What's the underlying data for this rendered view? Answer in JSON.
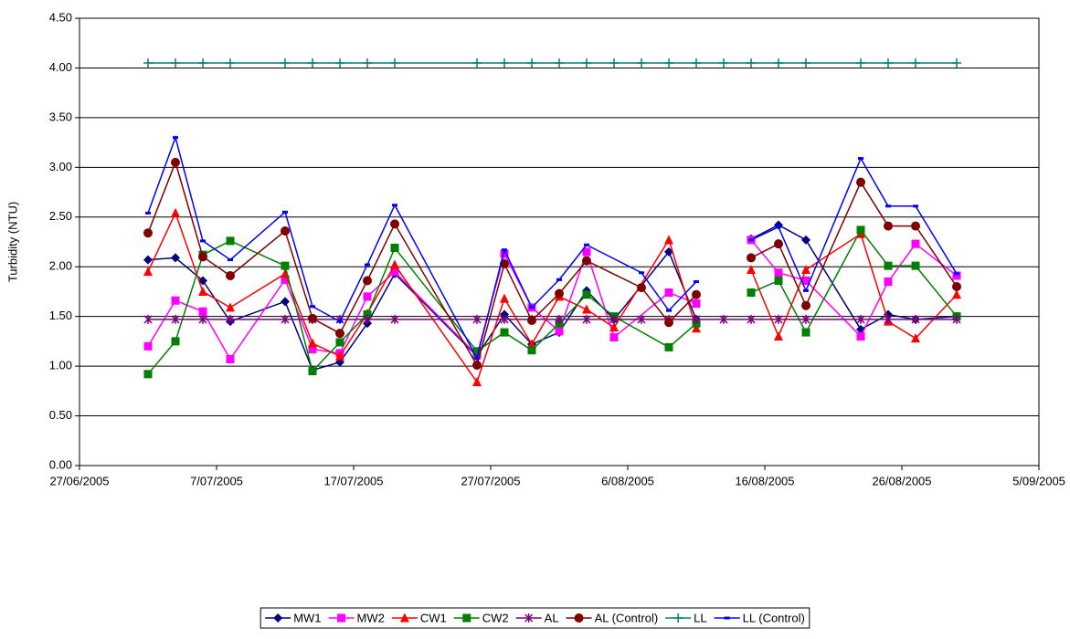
{
  "chart_data": {
    "type": "line",
    "y_label": "Turbidity (NTU)",
    "ylim": [
      0,
      4.5
    ],
    "yticks": [
      {
        "value": 0,
        "label": "0.00"
      },
      {
        "value": 0.5,
        "label": "0.50"
      },
      {
        "value": 1,
        "label": "1.00"
      },
      {
        "value": 1.5,
        "label": "1.50"
      },
      {
        "value": 2,
        "label": "2.00"
      },
      {
        "value": 2.5,
        "label": "2.50"
      },
      {
        "value": 3,
        "label": "3.00"
      },
      {
        "value": 3.5,
        "label": "3.50"
      },
      {
        "value": 4,
        "label": "4.00"
      },
      {
        "value": 4.5,
        "label": "4.50"
      }
    ],
    "xlim": [
      "2005-06-27",
      "2005-09-05"
    ],
    "xticks": [
      {
        "value": "2005-06-27",
        "label": "27/06/2005"
      },
      {
        "value": "2005-07-07",
        "label": "7/07/2005"
      },
      {
        "value": "2005-07-17",
        "label": "17/07/2005"
      },
      {
        "value": "2005-07-27",
        "label": "27/07/2005"
      },
      {
        "value": "2005-08-06",
        "label": "6/08/2005"
      },
      {
        "value": "2005-08-16",
        "label": "16/08/2005"
      },
      {
        "value": "2005-08-26",
        "label": "26/08/2005"
      },
      {
        "value": "2005-09-05",
        "label": "5/09/2005"
      }
    ],
    "grid": true,
    "legend": "bottom",
    "series": [
      {
        "name": "MW1",
        "color": "#000080",
        "marker": "diamond",
        "x": [
          "2005-07-02",
          "2005-07-04",
          "2005-07-06",
          "2005-07-08",
          "2005-07-12",
          "2005-07-14",
          "2005-07-16",
          "2005-07-18",
          "2005-07-20",
          "2005-07-26",
          "2005-07-28",
          "2005-07-30",
          "2005-08-01",
          "2005-08-03",
          "2005-08-05",
          "2005-08-09",
          "2005-08-11",
          "2005-08-13",
          "2005-08-15",
          "2005-08-17",
          "2005-08-19",
          "2005-08-23",
          "2005-08-25",
          "2005-08-27",
          "2005-08-30"
        ],
        "values": [
          2.07,
          2.09,
          1.86,
          1.45,
          1.65,
          0.96,
          1.04,
          1.43,
          1.93,
          1.1,
          1.52,
          1.22,
          1.34,
          1.76,
          1.47,
          2.15,
          1.47,
          null,
          2.28,
          2.42,
          2.27,
          1.37,
          1.52,
          1.47,
          1.5
        ]
      },
      {
        "name": "MW2",
        "color": "#FF00FF",
        "marker": "square",
        "x": [
          "2005-07-02",
          "2005-07-04",
          "2005-07-06",
          "2005-07-08",
          "2005-07-12",
          "2005-07-14",
          "2005-07-16",
          "2005-07-18",
          "2005-07-20",
          "2005-07-26",
          "2005-07-28",
          "2005-07-30",
          "2005-08-01",
          "2005-08-03",
          "2005-08-05",
          "2005-08-09",
          "2005-08-11",
          "2005-08-13",
          "2005-08-15",
          "2005-08-17",
          "2005-08-19",
          "2005-08-23",
          "2005-08-25",
          "2005-08-27",
          "2005-08-30"
        ],
        "values": [
          1.2,
          1.66,
          1.55,
          1.07,
          1.87,
          1.17,
          1.13,
          1.7,
          1.95,
          1.11,
          2.13,
          1.59,
          1.35,
          2.15,
          1.29,
          1.74,
          1.63,
          null,
          2.27,
          1.94,
          1.86,
          1.3,
          1.85,
          2.23,
          1.91
        ]
      },
      {
        "name": "CW1",
        "color": "#FF0000",
        "marker": "triangle",
        "x": [
          "2005-07-02",
          "2005-07-04",
          "2005-07-06",
          "2005-07-08",
          "2005-07-12",
          "2005-07-14",
          "2005-07-16",
          "2005-07-18",
          "2005-07-20",
          "2005-07-26",
          "2005-07-28",
          "2005-07-30",
          "2005-08-01",
          "2005-08-03",
          "2005-08-05",
          "2005-08-09",
          "2005-08-11",
          "2005-08-13",
          "2005-08-15",
          "2005-08-17",
          "2005-08-19",
          "2005-08-23",
          "2005-08-25",
          "2005-08-27",
          "2005-08-30"
        ],
        "values": [
          1.95,
          2.54,
          1.75,
          1.59,
          1.93,
          1.23,
          1.1,
          1.53,
          2.02,
          0.84,
          1.68,
          1.22,
          1.7,
          1.57,
          1.39,
          2.27,
          1.38,
          null,
          1.97,
          1.3,
          1.97,
          2.33,
          1.45,
          1.28,
          1.72
        ]
      },
      {
        "name": "CW2",
        "color": "#008000",
        "marker": "square",
        "x": [
          "2005-07-02",
          "2005-07-04",
          "2005-07-06",
          "2005-07-08",
          "2005-07-12",
          "2005-07-14",
          "2005-07-16",
          "2005-07-18",
          "2005-07-20",
          "2005-07-26",
          "2005-07-28",
          "2005-07-30",
          "2005-08-01",
          "2005-08-03",
          "2005-08-05",
          "2005-08-09",
          "2005-08-11",
          "2005-08-13",
          "2005-08-15",
          "2005-08-17",
          "2005-08-19",
          "2005-08-23",
          "2005-08-25",
          "2005-08-27",
          "2005-08-30"
        ],
        "values": [
          0.92,
          1.25,
          2.12,
          2.26,
          2.01,
          0.95,
          1.24,
          1.52,
          2.19,
          1.15,
          1.34,
          1.16,
          1.43,
          1.72,
          1.5,
          1.19,
          1.43,
          null,
          1.74,
          1.86,
          1.34,
          2.37,
          2.01,
          2.01,
          1.5
        ]
      },
      {
        "name": "AL",
        "color": "#800080",
        "marker": "star",
        "x": [
          "2005-07-02",
          "2005-07-04",
          "2005-07-06",
          "2005-07-08",
          "2005-07-12",
          "2005-07-14",
          "2005-07-16",
          "2005-07-18",
          "2005-07-20",
          "2005-07-26",
          "2005-07-28",
          "2005-07-30",
          "2005-08-01",
          "2005-08-03",
          "2005-08-05",
          "2005-08-07",
          "2005-08-09",
          "2005-08-11",
          "2005-08-13",
          "2005-08-15",
          "2005-08-17",
          "2005-08-19",
          "2005-08-23",
          "2005-08-25",
          "2005-08-27",
          "2005-08-30"
        ],
        "values": [
          1.47,
          1.47,
          1.47,
          1.47,
          1.47,
          1.47,
          1.47,
          1.47,
          1.47,
          1.47,
          1.47,
          1.47,
          1.47,
          1.47,
          1.47,
          1.47,
          1.47,
          1.47,
          1.47,
          1.47,
          1.47,
          1.47,
          1.47,
          1.47,
          1.47,
          1.47
        ]
      },
      {
        "name": "AL (Control)",
        "color": "#800000",
        "marker": "circle",
        "x": [
          "2005-07-02",
          "2005-07-04",
          "2005-07-06",
          "2005-07-08",
          "2005-07-12",
          "2005-07-14",
          "2005-07-16",
          "2005-07-18",
          "2005-07-20",
          "2005-07-26",
          "2005-07-28",
          "2005-07-30",
          "2005-08-01",
          "2005-08-03",
          "2005-08-07",
          "2005-08-09",
          "2005-08-11",
          "2005-08-13",
          "2005-08-15",
          "2005-08-17",
          "2005-08-19",
          "2005-08-23",
          "2005-08-25",
          "2005-08-27",
          "2005-08-30"
        ],
        "values": [
          2.34,
          3.05,
          2.1,
          1.91,
          2.36,
          1.48,
          1.33,
          1.86,
          2.43,
          1.01,
          2.03,
          1.46,
          1.73,
          2.06,
          1.79,
          1.44,
          1.72,
          null,
          2.09,
          2.23,
          1.61,
          2.85,
          2.41,
          2.41,
          1.8
        ]
      },
      {
        "name": "LL",
        "color": "#008080",
        "marker": "plus",
        "x": [
          "2005-07-02",
          "2005-07-04",
          "2005-07-06",
          "2005-07-08",
          "2005-07-12",
          "2005-07-14",
          "2005-07-16",
          "2005-07-18",
          "2005-07-20",
          "2005-07-26",
          "2005-07-28",
          "2005-07-30",
          "2005-08-01",
          "2005-08-03",
          "2005-08-05",
          "2005-08-07",
          "2005-08-09",
          "2005-08-11",
          "2005-08-13",
          "2005-08-15",
          "2005-08-17",
          "2005-08-19",
          "2005-08-23",
          "2005-08-25",
          "2005-08-27",
          "2005-08-30"
        ],
        "values": [
          4.05,
          4.05,
          4.05,
          4.05,
          4.05,
          4.05,
          4.05,
          4.05,
          4.05,
          4.05,
          4.05,
          4.05,
          4.05,
          4.05,
          4.05,
          4.05,
          4.05,
          4.05,
          4.05,
          4.05,
          4.05,
          4.05,
          4.05,
          4.05,
          4.05,
          4.05
        ]
      },
      {
        "name": "LL (Control)",
        "color": "#0000FF",
        "marker": "dash",
        "x": [
          "2005-07-02",
          "2005-07-04",
          "2005-07-06",
          "2005-07-08",
          "2005-07-12",
          "2005-07-14",
          "2005-07-16",
          "2005-07-18",
          "2005-07-20",
          "2005-07-26",
          "2005-07-28",
          "2005-07-30",
          "2005-08-01",
          "2005-08-03",
          "2005-08-07",
          "2005-08-09",
          "2005-08-11",
          "2005-08-13",
          "2005-08-15",
          "2005-08-17",
          "2005-08-19",
          "2005-08-23",
          "2005-08-25",
          "2005-08-27",
          "2005-08-30"
        ],
        "values": [
          2.54,
          3.3,
          2.26,
          2.07,
          2.55,
          1.6,
          1.45,
          2.02,
          2.62,
          1.08,
          2.17,
          1.59,
          1.87,
          2.22,
          1.94,
          1.56,
          1.85,
          null,
          2.27,
          2.4,
          1.76,
          3.09,
          2.61,
          2.61,
          1.93
        ]
      }
    ]
  }
}
